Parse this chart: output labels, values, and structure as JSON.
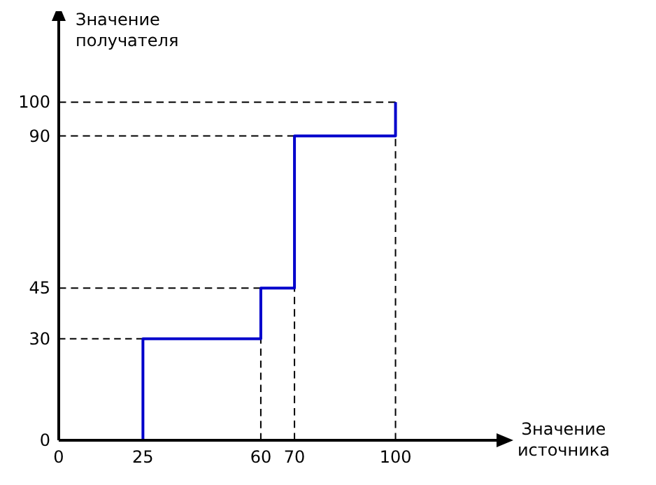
{
  "chart_data": {
    "type": "step",
    "xlabel": "Значение источника",
    "ylabel": "Значение получателя",
    "x": [
      0,
      25,
      60,
      70,
      100
    ],
    "series": [
      {
        "color": "#000000",
        "type": "line",
        "line_style": "dashed",
        "x": [
          0,
          25
        ],
        "values": [
          30,
          30
        ]
      },
      {
        "color": "#000000",
        "type": "line",
        "line_style": "dashed",
        "x": [
          0,
          60
        ],
        "values": [
          45,
          45
        ]
      },
      {
        "color": "#000000",
        "type": "line",
        "line_style": "dashed",
        "x": [
          0,
          70
        ],
        "values": [
          90,
          90
        ]
      },
      {
        "color": "#000000",
        "type": "line",
        "line_style": "dashed",
        "x": [
          0,
          100
        ],
        "values": [
          100,
          100
        ]
      },
      {
        "color": "#000000",
        "type": "line",
        "line_style": "dashed",
        "x": [
          60,
          60
        ],
        "values": [
          0,
          45
        ]
      },
      {
        "color": "#000000",
        "type": "line",
        "line_style": "dashed",
        "x": [
          70,
          70
        ],
        "values": [
          0,
          90
        ]
      },
      {
        "color": "#000000",
        "type": "line",
        "line_style": "dashed",
        "x": [
          100,
          100
        ],
        "values": [
          0,
          100
        ]
      },
      {
        "color": "#0000cc",
        "values": [
          0,
          30,
          45,
          90,
          100
        ]
      }
    ],
    "xlim": [
      0,
      130
    ],
    "ylim": [
      0,
      124
    ],
    "xticks": [
      0,
      25,
      60,
      70,
      100
    ],
    "yticks": [
      0,
      30,
      45,
      90,
      100
    ],
    "line_style": "solid"
  }
}
